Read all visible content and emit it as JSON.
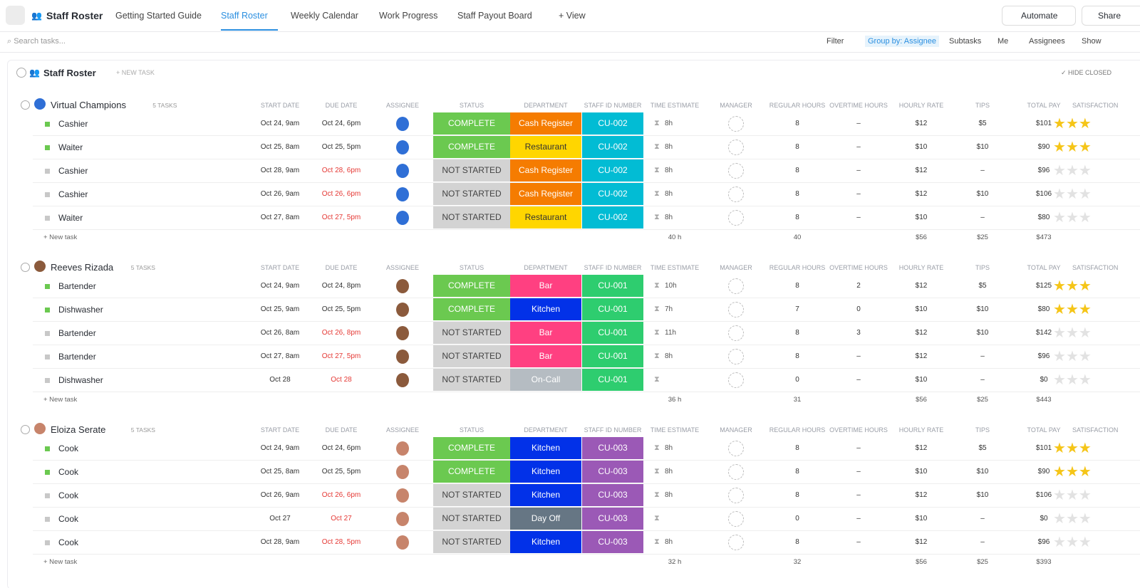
{
  "header": {
    "title": "Staff Roster",
    "tabs": [
      "Getting Started Guide",
      "Staff Roster",
      "Weekly Calendar",
      "Work Progress",
      "Staff Payout Board"
    ],
    "add_view": "View",
    "automate": "Automate",
    "share": "Share"
  },
  "toolbar": {
    "search_placeholder": "Search tasks...",
    "buttons": [
      "Filter",
      "Group by: Assignee",
      "Subtasks",
      "Me",
      "Assignees",
      "Show"
    ]
  },
  "list": {
    "title": "Staff Roster",
    "new_task": "+ NEW TASK",
    "hide_closed": "HIDE CLOSED"
  },
  "columns": [
    "START DATE",
    "DUE DATE",
    "ASSIGNEE",
    "STATUS",
    "DEPARTMENT",
    "STAFF ID NUMBER",
    "TIME ESTIMATE",
    "MANAGER",
    "REGULAR HOURS",
    "OVERTIME HOURS",
    "HOURLY RATE",
    "TIPS",
    "TOTAL PAY",
    "SATISFACTION"
  ],
  "colors": {
    "status": {
      "COMPLETE": "#6bc950",
      "NOT STARTED": "#d3d3d3"
    },
    "department": {
      "Cash Register": "#f57c01",
      "Restaurant": "#ffd600",
      "Bar": "#ff4081",
      "Kitchen": "#0231e8",
      "On-Call": "#b5bcc2",
      "Day Off": "#667684"
    },
    "staff_id": {
      "CU-002": "#02bcd4",
      "CU-001": "#2ecd6f",
      "CU-003": "#9b59b6"
    },
    "overdue": "#e53935"
  },
  "groups": [
    {
      "name": "Virtual Champions",
      "count": "5 TASKS",
      "new_task": "+ New task",
      "rows": [
        {
          "task": "Cashier",
          "start": "Oct 24, 9am",
          "due": "Oct 24, 6pm",
          "overdue": false,
          "status": "COMPLETE",
          "department": "Cash Register",
          "staff_id": "CU-002",
          "time_estimate": "8h",
          "regular_hours": "8",
          "overtime_hours": "–",
          "hourly_rate": "$12",
          "tips": "$5",
          "total_pay": "$101",
          "stars": 3
        },
        {
          "task": "Waiter",
          "start": "Oct 25, 8am",
          "due": "Oct 25, 5pm",
          "overdue": false,
          "status": "COMPLETE",
          "department": "Restaurant",
          "staff_id": "CU-002",
          "time_estimate": "8h",
          "regular_hours": "8",
          "overtime_hours": "–",
          "hourly_rate": "$10",
          "tips": "$10",
          "total_pay": "$90",
          "stars": 3
        },
        {
          "task": "Cashier",
          "start": "Oct 28, 9am",
          "due": "Oct 28, 6pm",
          "overdue": true,
          "status": "NOT STARTED",
          "department": "Cash Register",
          "staff_id": "CU-002",
          "time_estimate": "8h",
          "regular_hours": "8",
          "overtime_hours": "–",
          "hourly_rate": "$12",
          "tips": "–",
          "total_pay": "$96",
          "stars": 0
        },
        {
          "task": "Cashier",
          "start": "Oct 26, 9am",
          "due": "Oct 26, 6pm",
          "overdue": true,
          "status": "NOT STARTED",
          "department": "Cash Register",
          "staff_id": "CU-002",
          "time_estimate": "8h",
          "regular_hours": "8",
          "overtime_hours": "–",
          "hourly_rate": "$12",
          "tips": "$10",
          "total_pay": "$106",
          "stars": 0
        },
        {
          "task": "Waiter",
          "start": "Oct 27, 8am",
          "due": "Oct 27, 5pm",
          "overdue": true,
          "status": "NOT STARTED",
          "department": "Restaurant",
          "staff_id": "CU-002",
          "time_estimate": "8h",
          "regular_hours": "8",
          "overtime_hours": "–",
          "hourly_rate": "$10",
          "tips": "–",
          "total_pay": "$80",
          "stars": 0
        }
      ],
      "totals": {
        "time_estimate": "40 h",
        "regular_hours": "40",
        "hourly_rate": "$56",
        "tips": "$25",
        "total_pay": "$473"
      }
    },
    {
      "name": "Reeves Rizada",
      "count": "5 TASKS",
      "new_task": "+ New task",
      "rows": [
        {
          "task": "Bartender",
          "start": "Oct 24, 9am",
          "due": "Oct 24, 8pm",
          "overdue": false,
          "status": "COMPLETE",
          "department": "Bar",
          "staff_id": "CU-001",
          "time_estimate": "10h",
          "regular_hours": "8",
          "overtime_hours": "2",
          "hourly_rate": "$12",
          "tips": "$5",
          "total_pay": "$125",
          "stars": 3
        },
        {
          "task": "Dishwasher",
          "start": "Oct 25, 9am",
          "due": "Oct 25, 5pm",
          "overdue": false,
          "status": "COMPLETE",
          "department": "Kitchen",
          "staff_id": "CU-001",
          "time_estimate": "7h",
          "regular_hours": "7",
          "overtime_hours": "0",
          "hourly_rate": "$10",
          "tips": "$10",
          "total_pay": "$80",
          "stars": 3
        },
        {
          "task": "Bartender",
          "start": "Oct 26, 8am",
          "due": "Oct 26, 8pm",
          "overdue": true,
          "status": "NOT STARTED",
          "department": "Bar",
          "staff_id": "CU-001",
          "time_estimate": "11h",
          "regular_hours": "8",
          "overtime_hours": "3",
          "hourly_rate": "$12",
          "tips": "$10",
          "total_pay": "$142",
          "stars": 0
        },
        {
          "task": "Bartender",
          "start": "Oct 27, 8am",
          "due": "Oct 27, 5pm",
          "overdue": true,
          "status": "NOT STARTED",
          "department": "Bar",
          "staff_id": "CU-001",
          "time_estimate": "8h",
          "regular_hours": "8",
          "overtime_hours": "–",
          "hourly_rate": "$12",
          "tips": "–",
          "total_pay": "$96",
          "stars": 0
        },
        {
          "task": "Dishwasher",
          "start": "Oct 28",
          "due": "Oct 28",
          "overdue": true,
          "status": "NOT STARTED",
          "department": "On-Call",
          "staff_id": "CU-001",
          "time_estimate": null,
          "regular_hours": "0",
          "overtime_hours": "–",
          "hourly_rate": "$10",
          "tips": "–",
          "total_pay": "$0",
          "stars": 0
        }
      ],
      "totals": {
        "time_estimate": "36 h",
        "regular_hours": "31",
        "hourly_rate": "$56",
        "tips": "$25",
        "total_pay": "$443"
      }
    },
    {
      "name": "Eloiza Serate",
      "count": "5 TASKS",
      "new_task": "+ New task",
      "rows": [
        {
          "task": "Cook",
          "start": "Oct 24, 9am",
          "due": "Oct 24, 6pm",
          "overdue": false,
          "status": "COMPLETE",
          "department": "Kitchen",
          "staff_id": "CU-003",
          "time_estimate": "8h",
          "regular_hours": "8",
          "overtime_hours": "–",
          "hourly_rate": "$12",
          "tips": "$5",
          "total_pay": "$101",
          "stars": 3
        },
        {
          "task": "Cook",
          "start": "Oct 25, 8am",
          "due": "Oct 25, 5pm",
          "overdue": false,
          "status": "COMPLETE",
          "department": "Kitchen",
          "staff_id": "CU-003",
          "time_estimate": "8h",
          "regular_hours": "8",
          "overtime_hours": "–",
          "hourly_rate": "$10",
          "tips": "$10",
          "total_pay": "$90",
          "stars": 3
        },
        {
          "task": "Cook",
          "start": "Oct 26, 9am",
          "due": "Oct 26, 6pm",
          "overdue": true,
          "status": "NOT STARTED",
          "department": "Kitchen",
          "staff_id": "CU-003",
          "time_estimate": "8h",
          "regular_hours": "8",
          "overtime_hours": "–",
          "hourly_rate": "$12",
          "tips": "$10",
          "total_pay": "$106",
          "stars": 0
        },
        {
          "task": "Cook",
          "start": "Oct 27",
          "due": "Oct 27",
          "overdue": true,
          "status": "NOT STARTED",
          "department": "Day Off",
          "staff_id": "CU-003",
          "time_estimate": null,
          "regular_hours": "0",
          "overtime_hours": "–",
          "hourly_rate": "$10",
          "tips": "–",
          "total_pay": "$0",
          "stars": 0
        },
        {
          "task": "Cook",
          "start": "Oct 28, 9am",
          "due": "Oct 28, 5pm",
          "overdue": true,
          "status": "NOT STARTED",
          "department": "Kitchen",
          "staff_id": "CU-003",
          "time_estimate": "8h",
          "regular_hours": "8",
          "overtime_hours": "–",
          "hourly_rate": "$12",
          "tips": "–",
          "total_pay": "$96",
          "stars": 0
        }
      ],
      "totals": {
        "time_estimate": "32 h",
        "regular_hours": "32",
        "hourly_rate": "$56",
        "tips": "$25",
        "total_pay": "$393"
      }
    }
  ]
}
